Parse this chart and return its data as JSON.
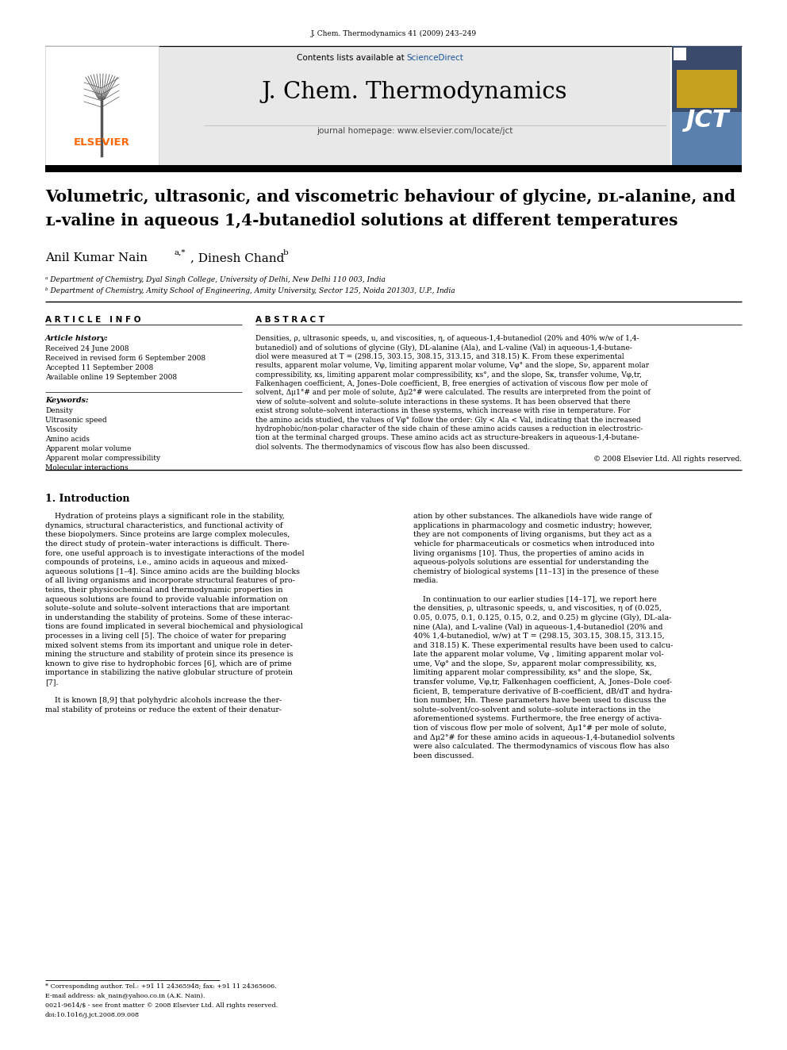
{
  "journal_header": "J. Chem. Thermodynamics 41 (2009) 243–249",
  "received": "Received 24 June 2008",
  "revised": "Received in revised form 6 September 2008",
  "accepted": "Accepted 11 September 2008",
  "online": "Available online 19 September 2008",
  "keywords": [
    "Density",
    "Ultrasonic speed",
    "Viscosity",
    "Amino acids",
    "Apparent molar volume",
    "Apparent molar compressibility",
    "Molecular interactions"
  ],
  "corr_note": "* Corresponding author. Tel.: +91 11 24365948; fax: +91 11 24365606.",
  "email_note": "E-mail address: ak_nain@yahoo.co.in (A.K. Nain).",
  "issn_note": "0021-9614/$ - see front matter © 2008 Elsevier Ltd. All rights reserved.",
  "doi_note": "doi:10.1016/j.jct.2008.09.008",
  "bg_header": "#e8e8e8",
  "color_elsevier": "#FF6600",
  "color_sciencedirect": "#1a5499",
  "jct_dark": "#2a3a5a",
  "jct_blue": "#4a7ab5",
  "jct_gold": "#c8a020",
  "abstract_lines": [
    "Densities, ρ, ultrasonic speeds, u, and viscosities, η, of aqueous-1,4-butanediol (20% and 40% w/w of 1,4-",
    "butanediol) and of solutions of glycine (Gly), DL-alanine (Ala), and L-valine (Val) in aqueous-1,4-butane-",
    "diol were measured at T = (298.15, 303.15, 308.15, 313.15, and 318.15) K. From these experimental",
    "results, apparent molar volume, Vφ, limiting apparent molar volume, Vφ° and the slope, Sν, apparent molar",
    "compressibility, κs, limiting apparent molar compressibility, κs°, and the slope, Sκ, transfer volume, Vφ,tr,",
    "Falkenhagen coefficient, A, Jones–Dole coefficient, B, free energies of activation of viscous flow per mole of",
    "solvent, Δμ1°# and per mole of solute, Δμ2°# were calculated. The results are interpreted from the point of",
    "view of solute–solvent and solute–solute interactions in these systems. It has been observed that there",
    "exist strong solute–solvent interactions in these systems, which increase with rise in temperature. For",
    "the amino acids studied, the values of Vφ° follow the order: Gly < Ala < Val, indicating that the increased",
    "hydrophobic/non-polar character of the side chain of these amino acids causes a reduction in electrostric-",
    "tion at the terminal charged groups. These amino acids act as structure-breakers in aqueous-1,4-butane-",
    "diol solvents. The thermodynamics of viscous flow has also been discussed."
  ],
  "intro_col1_lines": [
    "    Hydration of proteins plays a significant role in the stability,",
    "dynamics, structural characteristics, and functional activity of",
    "these biopolymers. Since proteins are large complex molecules,",
    "the direct study of protein–water interactions is difficult. There-",
    "fore, one useful approach is to investigate interactions of the model",
    "compounds of proteins, i.e., amino acids in aqueous and mixed-",
    "aqueous solutions [1–4]. Since amino acids are the building blocks",
    "of all living organisms and incorporate structural features of pro-",
    "teins, their physicochemical and thermodynamic properties in",
    "aqueous solutions are found to provide valuable information on",
    "solute–solute and solute–solvent interactions that are important",
    "in understanding the stability of proteins. Some of these interac-",
    "tions are found implicated in several biochemical and physiological",
    "processes in a living cell [5]. The choice of water for preparing",
    "mixed solvent stems from its important and unique role in deter-",
    "mining the structure and stability of protein since its presence is",
    "known to give rise to hydrophobic forces [6], which are of prime",
    "importance in stabilizing the native globular structure of protein",
    "[7].",
    "",
    "    It is known [8,9] that polyhydric alcohols increase the ther-",
    "mal stability of proteins or reduce the extent of their denatur-"
  ],
  "intro_col2_lines": [
    "ation by other substances. The alkanediols have wide range of",
    "applications in pharmacology and cosmetic industry; however,",
    "they are not components of living organisms, but they act as a",
    "vehicle for pharmaceuticals or cosmetics when introduced into",
    "living organisms [10]. Thus, the properties of amino acids in",
    "aqueous-polyols solutions are essential for understanding the",
    "chemistry of biological systems [11–13] in the presence of these",
    "media.",
    "",
    "    In continuation to our earlier studies [14–17], we report here",
    "the densities, ρ, ultrasonic speeds, u, and viscosities, η of (0.025,",
    "0.05, 0.075, 0.1, 0.125, 0.15, 0.2, and 0.25) m glycine (Gly), DL-ala-",
    "nine (Ala), and L-valine (Val) in aqueous-1,4-butanediol (20% and",
    "40% 1,4-butanediol, w/w) at T = (298.15, 303.15, 308.15, 313.15,",
    "and 318.15) K. These experimental results have been used to calcu-",
    "late the apparent molar volume, Vφ , limiting apparent molar vol-",
    "ume, Vφ° and the slope, Sν, apparent molar compressibility, κs,",
    "limiting apparent molar compressibility, κs° and the slope, Sκ,",
    "transfer volume, Vφ,tr, Falkenhagen coefficient, A, Jones–Dole coef-",
    "ficient, B, temperature derivative of B-coefficient, dB/dT and hydra-",
    "tion number, Hn. These parameters have been used to discuss the",
    "solute–solvent/co-solvent and solute–solute interactions in the",
    "aforementioned systems. Furthermore, the free energy of activa-",
    "tion of viscous flow per mole of solvent, Δμ1°# per mole of solute,",
    "and Δμ2°# for these amino acids in aqueous-1,4-butanediol solvents",
    "were also calculated. The thermodynamics of viscous flow has also",
    "been discussed."
  ]
}
